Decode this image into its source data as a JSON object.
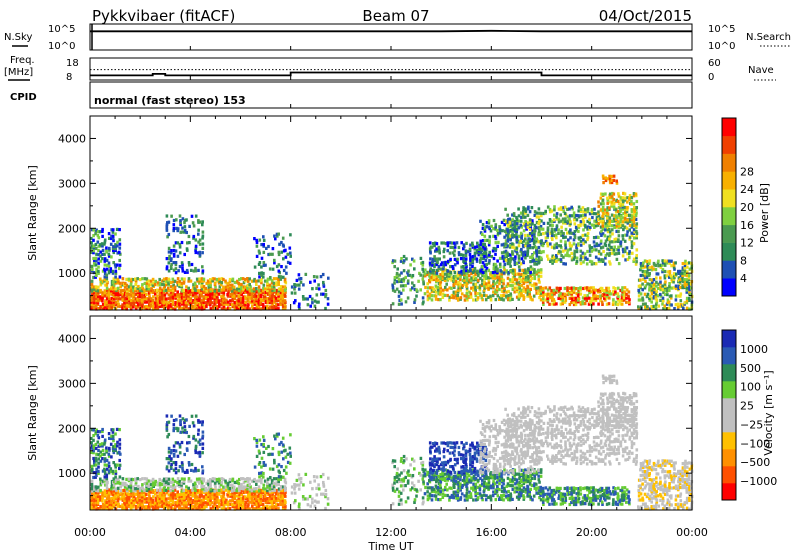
{
  "header": {
    "station": "Pykkvibaer (fitACF)",
    "beam": "Beam 07",
    "date": "04/Oct/2015"
  },
  "strip_labels": {
    "nsky": "N.Sky",
    "nsearch": "N.Search",
    "freq_line1": "Freq.",
    "freq_line2": "[MHz]",
    "nave": "Nave",
    "cpid": "CPID",
    "cpid_value": "normal (fast stereo) 153"
  },
  "noise_axis": {
    "left_top": "10^5",
    "left_bottom": "10^0",
    "right_top": "10^5",
    "right_bottom": "10^0"
  },
  "freq_axis": {
    "left_top": "18",
    "left_bottom": "8",
    "right_top": "60",
    "right_bottom": "0"
  },
  "x_axis": {
    "label": "Time UT",
    "ticks": [
      "00:00",
      "04:00",
      "08:00",
      "12:00",
      "16:00",
      "20:00",
      "00:00"
    ]
  },
  "colors": {
    "power": [
      "#0000ff",
      "#1e50b4",
      "#2e8b57",
      "#4a9a50",
      "#7fd040",
      "#f0e020",
      "#f8b000",
      "#f08000",
      "#f04000",
      "#ff0000"
    ],
    "velocity": [
      "#ff0000",
      "#ff5000",
      "#ff9000",
      "#ffc000",
      "#c0c0c0",
      "#c0c0c0",
      "#66cc33",
      "#2e8b57",
      "#2a5ab4",
      "#1a2ab4"
    ]
  },
  "chart_data": [
    {
      "type": "line",
      "title": "N.Sky / N.Search",
      "x": [
        "00:00",
        "02:00",
        "04:00",
        "06:00",
        "08:00",
        "10:00",
        "12:00",
        "14:00",
        "16:00",
        "18:00",
        "20:00",
        "22:00",
        "24:00"
      ],
      "series": [
        {
          "values": [
            3.6,
            3.6,
            3.6,
            3.6,
            3.6,
            3.6,
            3.6,
            3.6,
            3.7,
            3.6,
            3.6,
            3.6,
            3.6
          ]
        }
      ],
      "ylim": [
        0,
        5
      ],
      "scale": "log"
    },
    {
      "type": "line",
      "title": "Freq. / Nave",
      "x": [
        "00:00",
        "02:00",
        "02:30",
        "03:00",
        "08:00",
        "13:00",
        "18:00",
        "21:00",
        "24:00"
      ],
      "series": [
        {
          "values": [
            10.1,
            10.1,
            10.8,
            10.1,
            11.4,
            11.4,
            10.1,
            10.1,
            10.1
          ]
        },
        {
          "values": [
            12.7,
            12.7,
            12.7,
            12.7,
            12.7,
            12.7,
            12.7,
            12.7,
            12.7
          ]
        }
      ],
      "ylim": [
        8,
        18
      ]
    },
    {
      "type": "heatmap",
      "ylabel": "Slant Range [km]",
      "xlabel": "Time UT",
      "ylim": [
        180,
        4500
      ],
      "yticks": [
        "1000",
        "2000",
        "3000",
        "4000"
      ],
      "colorbar": {
        "label": "Power [dB]",
        "ticks": [
          "4",
          "8",
          "12",
          "16",
          "20",
          "24",
          "28"
        ]
      },
      "x": [
        "00:00",
        "04:00",
        "08:00",
        "12:00",
        "16:00",
        "20:00",
        "00:00"
      ]
    },
    {
      "type": "heatmap",
      "ylabel": "Slant Range [km]",
      "xlabel": "Time UT",
      "ylim": [
        180,
        4500
      ],
      "yticks": [
        "1000",
        "2000",
        "3000",
        "4000"
      ],
      "colorbar": {
        "label": "Velocity [m s⁻¹]",
        "ticks": [
          "1000",
          "500",
          "100",
          "25",
          "−25",
          "−100",
          "−500",
          "−1000"
        ]
      },
      "x": [
        "00:00",
        "04:00",
        "08:00",
        "12:00",
        "16:00",
        "20:00",
        "00:00"
      ]
    }
  ]
}
